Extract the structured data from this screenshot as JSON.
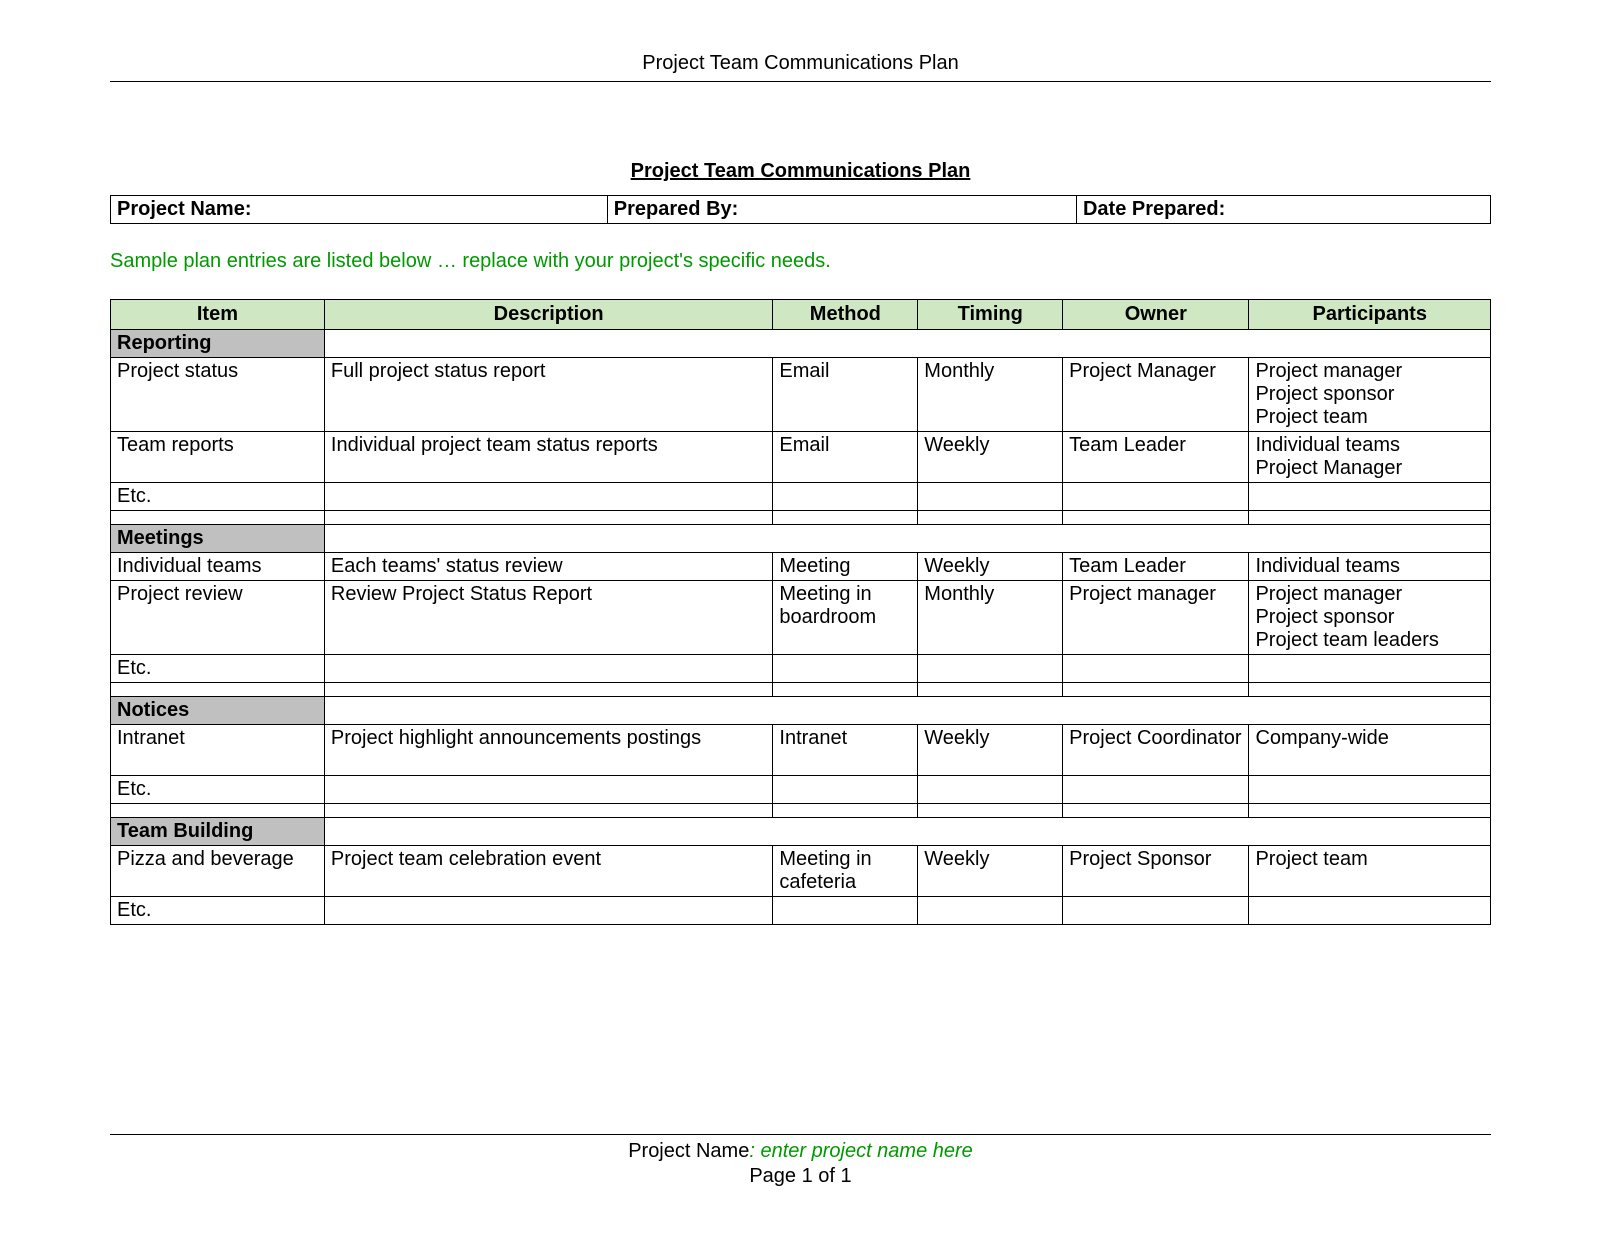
{
  "colors": {
    "green_text": "#009900",
    "header_fill": "#cfe8c3",
    "section_fill": "#c0c0c0",
    "border": "#000000",
    "background": "#ffffff",
    "text": "#000000"
  },
  "typography": {
    "font_family": "Arial",
    "base_fontsize_pt": 15,
    "title_weight": "bold"
  },
  "header": {
    "running_title": "Project Team Communications Plan"
  },
  "title": "Project Team Communications Plan",
  "meta": {
    "project_name_label": "Project Name:",
    "prepared_by_label": "Prepared By:",
    "date_prepared_label": "Date Prepared:",
    "col_widths_pct": [
      36,
      34,
      30
    ]
  },
  "sample_note": "Sample plan entries are listed below … replace with your project's specific needs.",
  "table": {
    "col_widths_pct": [
      15.5,
      32.5,
      10.5,
      10.5,
      13.5,
      17.5
    ],
    "columns": [
      "Item",
      "Description",
      "Method",
      "Timing",
      "Owner",
      "Participants"
    ],
    "sections": [
      {
        "label": "Reporting",
        "rows": [
          {
            "item": "Project status",
            "description": "Full project status report",
            "method": "Email",
            "timing": "Monthly",
            "owner": "Project Manager",
            "participants": "Project manager\nProject sponsor\nProject team"
          },
          {
            "item": "Team reports",
            "description": "Individual project team status reports",
            "method": "Email",
            "timing": "Weekly",
            "owner": "Team Leader",
            "participants": "Individual teams\nProject Manager"
          },
          {
            "item": "Etc.",
            "description": "",
            "method": "",
            "timing": "",
            "owner": "",
            "participants": ""
          }
        ]
      },
      {
        "label": "Meetings",
        "rows": [
          {
            "item": "Individual teams",
            "description": "Each teams' status review",
            "method": "Meeting",
            "timing": "Weekly",
            "owner": "Team Leader",
            "participants": "Individual teams\n "
          },
          {
            "item": "Project review",
            "description": "Review Project Status Report",
            "method": "Meeting in boardroom",
            "timing": "Monthly",
            "owner": "Project manager",
            "participants": "Project manager\nProject sponsor\nProject team leaders"
          },
          {
            "item": "Etc.",
            "description": "",
            "method": "",
            "timing": "",
            "owner": "",
            "participants": ""
          }
        ]
      },
      {
        "label": "Notices",
        "rows": [
          {
            "item": "Intranet",
            "description": "Project highlight announcements postings",
            "method": "Intranet",
            "timing": "Weekly",
            "owner": "Project Coordinator",
            "participants": "Company-wide\n \n "
          },
          {
            "item": "Etc.",
            "description": "",
            "method": "",
            "timing": "",
            "owner": "",
            "participants": ""
          }
        ]
      },
      {
        "label": "Team Building",
        "rows": [
          {
            "item": "Pizza and beverage",
            "description": "Project team celebration event",
            "method": "Meeting in cafeteria",
            "timing": "Weekly",
            "owner": "Project Sponsor",
            "participants": "Project team"
          },
          {
            "item": "Etc.",
            "description": "",
            "method": "",
            "timing": "",
            "owner": "",
            "participants": ""
          }
        ],
        "no_spacer_after": true
      }
    ]
  },
  "footer": {
    "label": "Project Name",
    "placeholder": ": enter project name here",
    "page_text": "Page 1 of 1"
  }
}
